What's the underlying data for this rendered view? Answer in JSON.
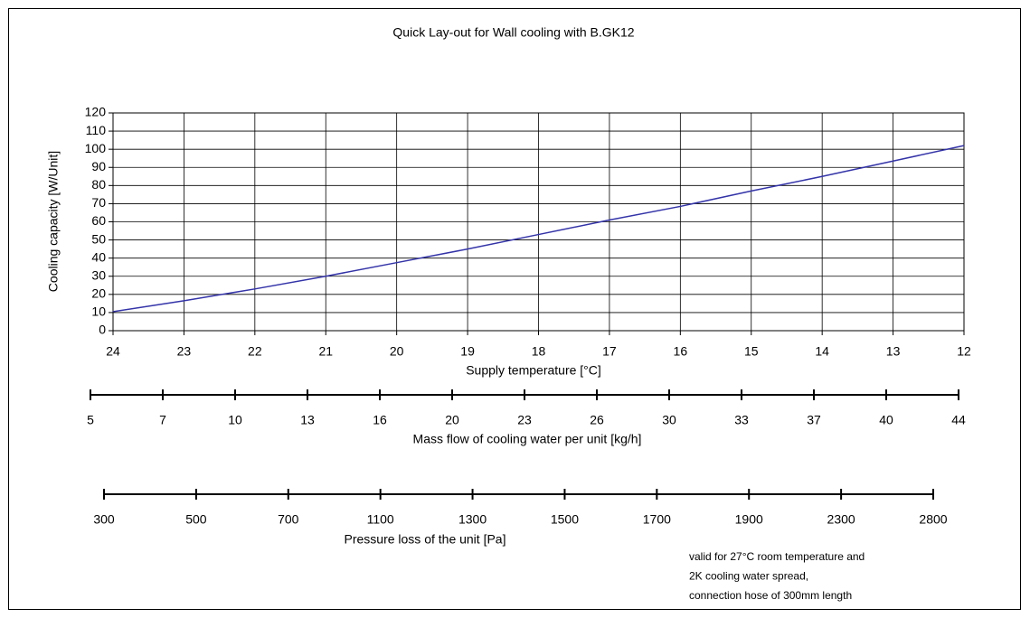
{
  "chart_data": {
    "type": "line",
    "title": "Quick Lay-out for Wall cooling with B.GK12",
    "x_label": "Supply temperature [°C]",
    "y_label": "Cooling capacity [W/Unit]",
    "x": [
      24,
      23,
      22,
      21,
      20,
      19,
      18,
      17,
      16,
      15,
      14,
      13,
      12
    ],
    "series": [
      {
        "name": "Cooling capacity",
        "color": "#3333aa",
        "values": [
          10.5,
          16.5,
          23,
          30,
          37.5,
          45,
          53,
          61,
          68.5,
          77,
          85,
          93.5,
          102
        ]
      }
    ],
    "xlim": [
      24,
      12
    ],
    "ylim": [
      0,
      120
    ],
    "xticks": [
      24,
      23,
      22,
      21,
      20,
      19,
      18,
      17,
      16,
      15,
      14,
      13,
      12
    ],
    "yticks": [
      0,
      10,
      20,
      30,
      40,
      50,
      60,
      70,
      80,
      90,
      100,
      110,
      120
    ],
    "grid": true,
    "scales": [
      {
        "title": "Mass flow of cooling water per unit [kg/h]",
        "ticks": [
          5,
          7,
          10,
          13,
          16,
          20,
          23,
          26,
          30,
          33,
          37,
          40,
          44
        ]
      },
      {
        "title": "Pressure loss of the unit [Pa]",
        "ticks": [
          300,
          500,
          700,
          1100,
          1300,
          1500,
          1700,
          1900,
          2300,
          2800
        ]
      }
    ],
    "notes": [
      "valid for 27°C room temperature and",
      "2K cooling water spread,",
      "connection hose of  300mm length"
    ]
  }
}
